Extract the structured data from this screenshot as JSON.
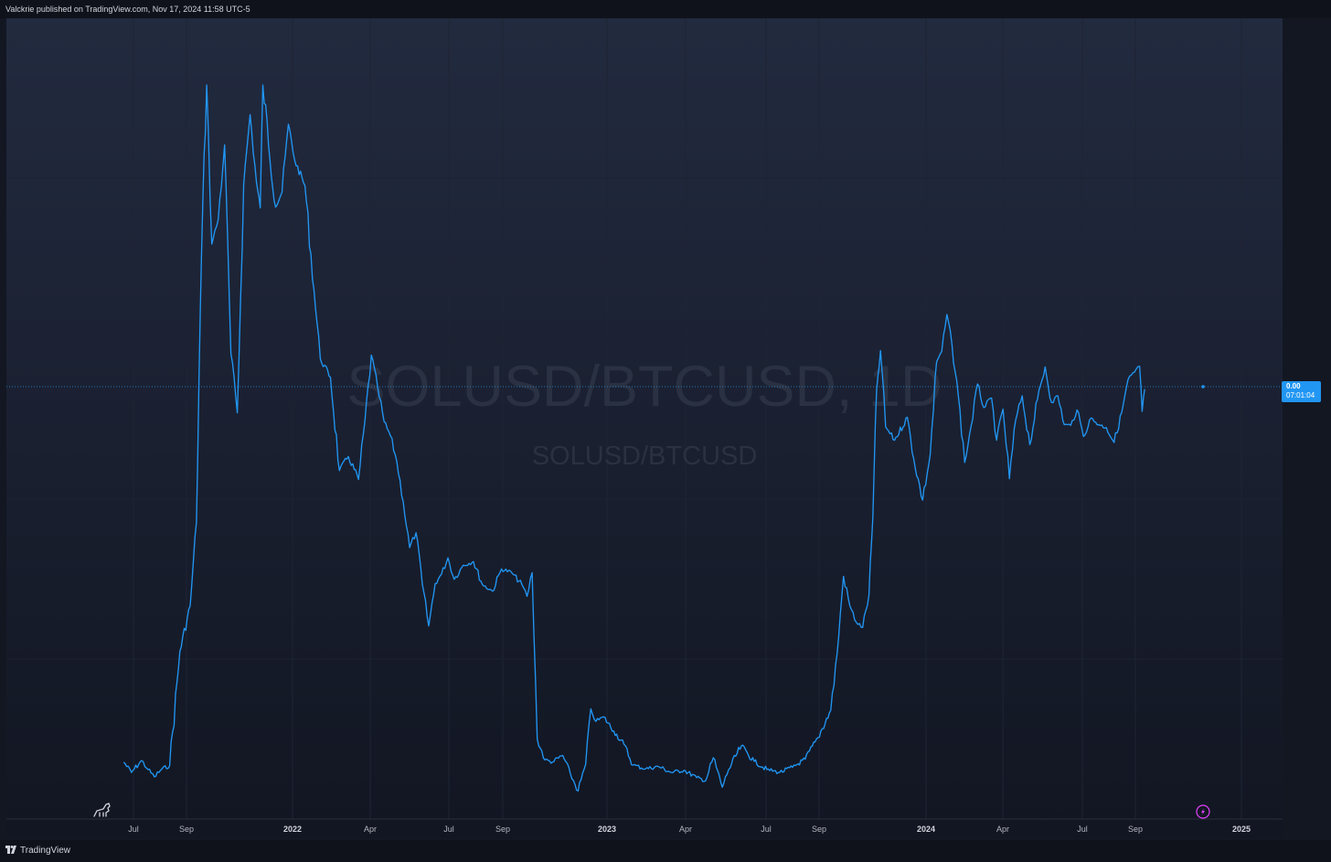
{
  "header": {
    "publisher_text": "Valckrie published on TradingView.com, Nov 17, 2024 11:58 UTC-5"
  },
  "watermark": {
    "symbol_interval": "SOLUSD/BTCUSD, 1D",
    "symbol": "SOLUSD/BTCUSD"
  },
  "price_label": {
    "value": "0.00",
    "countdown": "07:01:04"
  },
  "footer": {
    "brand": "TradingView"
  },
  "icons": [
    "dino-icon",
    "lightning-icon",
    "tradingview-logo-icon"
  ],
  "colors": {
    "background": "#131722",
    "line": "#2196f3",
    "grid": "#1e2433",
    "text": "#b2b5be",
    "accent_purple": "#e040fb"
  },
  "chart_data": {
    "type": "line",
    "series": [
      {
        "values": [
          [
            0.006,
            0.0072
          ],
          [
            0.012,
            0.0058
          ],
          [
            0.02,
            0.0074
          ],
          [
            0.025,
            0.0062
          ],
          [
            0.03,
            0.0052
          ],
          [
            0.036,
            0.0063
          ],
          [
            0.042,
            0.0067
          ],
          [
            0.05,
            0.0222
          ],
          [
            0.058,
            0.0283
          ],
          [
            0.063,
            0.0396
          ],
          [
            0.066,
            0.0682
          ],
          [
            0.068,
            0.0831
          ],
          [
            0.071,
            0.0987
          ],
          [
            0.075,
            0.0772
          ],
          [
            0.08,
            0.0805
          ],
          [
            0.085,
            0.0906
          ],
          [
            0.09,
            0.0624
          ],
          [
            0.095,
            0.0544
          ],
          [
            0.1,
            0.0853
          ],
          [
            0.105,
            0.0947
          ],
          [
            0.11,
            0.0855
          ],
          [
            0.113,
            0.0821
          ],
          [
            0.115,
            0.0987
          ],
          [
            0.125,
            0.0822
          ],
          [
            0.13,
            0.0842
          ],
          [
            0.135,
            0.0934
          ],
          [
            0.14,
            0.0885
          ],
          [
            0.148,
            0.0851
          ],
          [
            0.155,
            0.0711
          ],
          [
            0.16,
            0.0617
          ],
          [
            0.168,
            0.0592
          ],
          [
            0.175,
            0.0466
          ],
          [
            0.182,
            0.0485
          ],
          [
            0.19,
            0.0454
          ],
          [
            0.195,
            0.0533
          ],
          [
            0.2,
            0.0622
          ],
          [
            0.205,
            0.0578
          ],
          [
            0.21,
            0.0532
          ],
          [
            0.215,
            0.0513
          ],
          [
            0.22,
            0.0478
          ],
          [
            0.225,
            0.0424
          ],
          [
            0.23,
            0.0362
          ],
          [
            0.235,
            0.0382
          ],
          [
            0.24,
            0.0312
          ],
          [
            0.245,
            0.0256
          ],
          [
            0.25,
            0.0313
          ],
          [
            0.255,
            0.0326
          ],
          [
            0.26,
            0.0348
          ],
          [
            0.265,
            0.0319
          ],
          [
            0.272,
            0.0338
          ],
          [
            0.28,
            0.0343
          ],
          [
            0.287,
            0.0312
          ],
          [
            0.295,
            0.0303
          ],
          [
            0.302,
            0.0333
          ],
          [
            0.31,
            0.0328
          ],
          [
            0.318,
            0.0312
          ],
          [
            0.322,
            0.0296
          ],
          [
            0.326,
            0.0328
          ],
          [
            0.33,
            0.0103
          ],
          [
            0.336,
            0.0075
          ],
          [
            0.342,
            0.0072
          ],
          [
            0.35,
            0.0081
          ],
          [
            0.356,
            0.0056
          ],
          [
            0.362,
            0.0033
          ],
          [
            0.368,
            0.0069
          ],
          [
            0.372,
            0.0144
          ],
          [
            0.376,
            0.0127
          ],
          [
            0.382,
            0.0133
          ],
          [
            0.39,
            0.0114
          ],
          [
            0.398,
            0.0096
          ],
          [
            0.405,
            0.0068
          ],
          [
            0.415,
            0.0063
          ],
          [
            0.425,
            0.0066
          ],
          [
            0.435,
            0.0058
          ],
          [
            0.445,
            0.0061
          ],
          [
            0.455,
            0.0051
          ],
          [
            0.462,
            0.0047
          ],
          [
            0.468,
            0.0078
          ],
          [
            0.475,
            0.0038
          ],
          [
            0.48,
            0.0062
          ],
          [
            0.49,
            0.0094
          ],
          [
            0.5,
            0.0073
          ],
          [
            0.51,
            0.0062
          ],
          [
            0.52,
            0.0058
          ],
          [
            0.53,
            0.0065
          ],
          [
            0.54,
            0.0076
          ],
          [
            0.55,
            0.0105
          ],
          [
            0.56,
            0.0142
          ],
          [
            0.565,
            0.0218
          ],
          [
            0.57,
            0.0323
          ],
          [
            0.575,
            0.0283
          ],
          [
            0.58,
            0.0261
          ],
          [
            0.585,
            0.0254
          ],
          [
            0.59,
            0.0298
          ],
          [
            0.593,
            0.0402
          ],
          [
            0.596,
            0.0576
          ],
          [
            0.599,
            0.0628
          ],
          [
            0.603,
            0.0525
          ],
          [
            0.61,
            0.0507
          ],
          [
            0.62,
            0.0538
          ],
          [
            0.625,
            0.0482
          ],
          [
            0.632,
            0.0426
          ],
          [
            0.638,
            0.0488
          ],
          [
            0.643,
            0.0613
          ],
          [
            0.647,
            0.0627
          ],
          [
            0.651,
            0.0677
          ],
          [
            0.655,
            0.0636
          ],
          [
            0.66,
            0.0566
          ],
          [
            0.665,
            0.0477
          ],
          [
            0.67,
            0.0526
          ],
          [
            0.675,
            0.0583
          ],
          [
            0.68,
            0.0551
          ],
          [
            0.686,
            0.0564
          ],
          [
            0.69,
            0.0507
          ],
          [
            0.695,
            0.0549
          ],
          [
            0.7,
            0.0455
          ],
          [
            0.705,
            0.0535
          ],
          [
            0.71,
            0.0567
          ],
          [
            0.716,
            0.0501
          ],
          [
            0.722,
            0.0562
          ],
          [
            0.728,
            0.0606
          ],
          [
            0.733,
            0.0558
          ],
          [
            0.738,
            0.0567
          ],
          [
            0.743,
            0.0528
          ],
          [
            0.748,
            0.0527
          ],
          [
            0.753,
            0.0548
          ],
          [
            0.758,
            0.0512
          ],
          [
            0.764,
            0.0537
          ],
          [
            0.77,
            0.0528
          ],
          [
            0.776,
            0.0524
          ],
          [
            0.782,
            0.0504
          ],
          [
            0.788,
            0.0544
          ],
          [
            0.793,
            0.0589
          ],
          [
            0.798,
            0.0599
          ],
          [
            0.802,
            0.0607
          ],
          [
            0.804,
            0.0546
          ],
          [
            0.806,
            0.0576
          ]
        ]
      }
    ],
    "x_ticks": [
      "Jul",
      "Sep",
      "2022",
      "Apr",
      "Jul",
      "Sep",
      "2023",
      "Apr",
      "Jul",
      "Sep",
      "2024",
      "Apr",
      "Jul",
      "Sep",
      "2025"
    ],
    "last_value": "0.00"
  }
}
